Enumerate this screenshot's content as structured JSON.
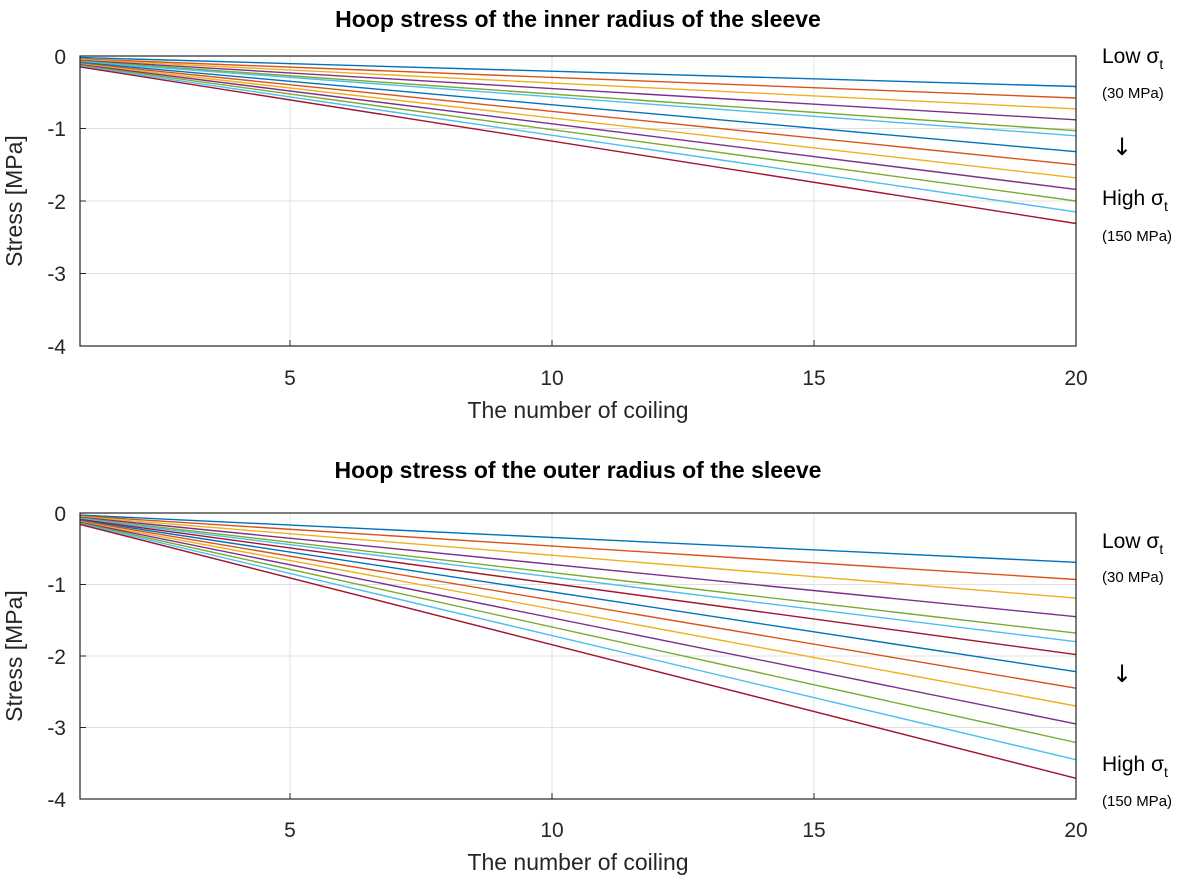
{
  "chart_data": [
    {
      "type": "line",
      "title": "Hoop stress of the inner radius of the sleeve",
      "xlabel": "The number of coiling",
      "ylabel": "Stress [MPa]",
      "xlim": [
        1,
        20
      ],
      "ylim": [
        -4,
        0
      ],
      "xticks": [
        5,
        10,
        15,
        20
      ],
      "yticks": [
        0,
        -1,
        -2,
        -3,
        -4
      ],
      "grid": true,
      "annotations": {
        "low_label": "Low σ",
        "low_sub": "t",
        "low_value": "(30 MPa)",
        "arrow": "↓",
        "high_label": "High σ",
        "high_sub": "t",
        "high_value": "(150 MPa)"
      },
      "series": [
        {
          "color": "#0072bd",
          "x": [
            1,
            20
          ],
          "y": [
            -0.02,
            -0.42
          ]
        },
        {
          "color": "#d95319",
          "x": [
            1,
            20
          ],
          "y": [
            -0.04,
            -0.58
          ]
        },
        {
          "color": "#edb120",
          "x": [
            1,
            20
          ],
          "y": [
            -0.05,
            -0.73
          ]
        },
        {
          "color": "#7e2f8e",
          "x": [
            1,
            20
          ],
          "y": [
            -0.06,
            -0.88
          ]
        },
        {
          "color": "#77ac30",
          "x": [
            1,
            20
          ],
          "y": [
            -0.07,
            -1.03
          ]
        },
        {
          "color": "#4dbeee",
          "x": [
            1,
            20
          ],
          "y": [
            -0.08,
            -1.1
          ]
        },
        {
          "color": "#0072bd",
          "x": [
            1,
            20
          ],
          "y": [
            -0.09,
            -1.32
          ]
        },
        {
          "color": "#d95319",
          "x": [
            1,
            20
          ],
          "y": [
            -0.1,
            -1.5
          ]
        },
        {
          "color": "#edb120",
          "x": [
            1,
            20
          ],
          "y": [
            -0.11,
            -1.68
          ]
        },
        {
          "color": "#7e2f8e",
          "x": [
            1,
            20
          ],
          "y": [
            -0.12,
            -1.84
          ]
        },
        {
          "color": "#77ac30",
          "x": [
            1,
            20
          ],
          "y": [
            -0.13,
            -2.0
          ]
        },
        {
          "color": "#4dbeee",
          "x": [
            1,
            20
          ],
          "y": [
            -0.14,
            -2.15
          ]
        },
        {
          "color": "#a2142f",
          "x": [
            1,
            20
          ],
          "y": [
            -0.15,
            -2.31
          ]
        }
      ]
    },
    {
      "type": "line",
      "title": "Hoop stress of the outer radius of the sleeve",
      "xlabel": "The number of coiling",
      "ylabel": "Stress [MPa]",
      "xlim": [
        1,
        20
      ],
      "ylim": [
        -4,
        0
      ],
      "xticks": [
        5,
        10,
        15,
        20
      ],
      "yticks": [
        0,
        -1,
        -2,
        -3,
        -4
      ],
      "grid": true,
      "annotations": {
        "low_label": "Low σ",
        "low_sub": "t",
        "low_value": "(30 MPa)",
        "arrow": "↓",
        "high_label": "High σ",
        "high_sub": "t",
        "high_value": "(150 MPa)"
      },
      "series": [
        {
          "color": "#0072bd",
          "x": [
            1,
            20
          ],
          "y": [
            -0.03,
            -0.69
          ]
        },
        {
          "color": "#d95319",
          "x": [
            1,
            20
          ],
          "y": [
            -0.04,
            -0.93
          ]
        },
        {
          "color": "#edb120",
          "x": [
            1,
            20
          ],
          "y": [
            -0.05,
            -1.19
          ]
        },
        {
          "color": "#7e2f8e",
          "x": [
            1,
            20
          ],
          "y": [
            -0.06,
            -1.45
          ]
        },
        {
          "color": "#77ac30",
          "x": [
            1,
            20
          ],
          "y": [
            -0.07,
            -1.68
          ]
        },
        {
          "color": "#4dbeee",
          "x": [
            1,
            20
          ],
          "y": [
            -0.08,
            -1.8
          ]
        },
        {
          "color": "#a2142f",
          "x": [
            1,
            20
          ],
          "y": [
            -0.09,
            -1.98
          ]
        },
        {
          "color": "#0072bd",
          "x": [
            1,
            20
          ],
          "y": [
            -0.1,
            -2.22
          ]
        },
        {
          "color": "#d95319",
          "x": [
            1,
            20
          ],
          "y": [
            -0.11,
            -2.45
          ]
        },
        {
          "color": "#edb120",
          "x": [
            1,
            20
          ],
          "y": [
            -0.12,
            -2.7
          ]
        },
        {
          "color": "#7e2f8e",
          "x": [
            1,
            20
          ],
          "y": [
            -0.13,
            -2.95
          ]
        },
        {
          "color": "#77ac30",
          "x": [
            1,
            20
          ],
          "y": [
            -0.14,
            -3.21
          ]
        },
        {
          "color": "#4dbeee",
          "x": [
            1,
            20
          ],
          "y": [
            -0.15,
            -3.45
          ]
        },
        {
          "color": "#a2142f",
          "x": [
            1,
            20
          ],
          "y": [
            -0.16,
            -3.71
          ]
        }
      ]
    }
  ]
}
